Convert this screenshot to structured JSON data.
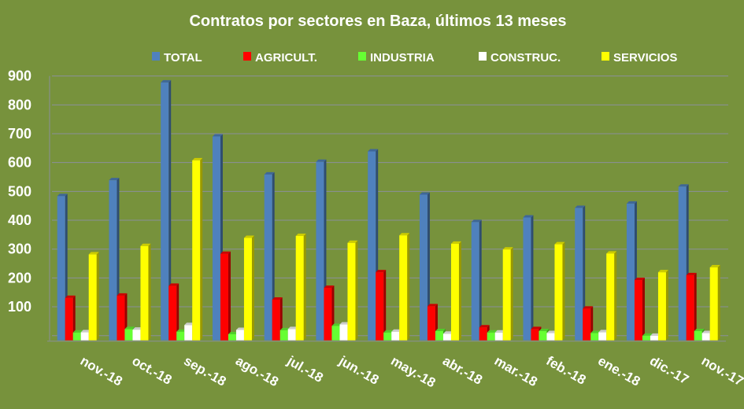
{
  "chart_data": {
    "type": "bar",
    "title": "Contratos por sectores en Baza, últimos 13 meses",
    "xlabel": "",
    "ylabel": "",
    "ylim": [
      0,
      900
    ],
    "yticks": [
      "100",
      "200",
      "300",
      "400",
      "500",
      "600",
      "700",
      "800",
      "900"
    ],
    "grid": true,
    "legend_position": "top",
    "categories": [
      "nov.-18",
      "oct.-18",
      "sep.-18",
      "ago.-18",
      "jul.-18",
      "jun.-18",
      "may.-18",
      "abr.-18",
      "mar.-18",
      "feb.-18",
      "ene.-18",
      "dic.-17",
      "nov.-17"
    ],
    "series": [
      {
        "name": "TOTAL",
        "color": "#4f81bd",
        "values": [
          500,
          555,
          894,
          707,
          575,
          619,
          655,
          505,
          410,
          426,
          459,
          474,
          533
        ]
      },
      {
        "name": "AGRICULT.",
        "color": "#ff0000",
        "values": [
          147,
          155,
          189,
          300,
          141,
          182,
          236,
          118,
          45,
          39,
          110,
          209,
          226
        ]
      },
      {
        "name": "INDUSTRIA",
        "color": "#66ff33",
        "values": [
          27,
          39,
          30,
          21,
          35,
          50,
          27,
          32,
          27,
          32,
          25,
          16,
          32
        ]
      },
      {
        "name": "CONSTRUC.",
        "color": "#ffffff",
        "values": [
          28,
          37,
          53,
          36,
          39,
          55,
          30,
          23,
          27,
          25,
          28,
          16,
          25
        ]
      },
      {
        "name": "SERVICIOS",
        "color": "#ffff00",
        "values": [
          298,
          327,
          624,
          355,
          362,
          338,
          364,
          335,
          315,
          333,
          301,
          236,
          253
        ]
      }
    ]
  }
}
